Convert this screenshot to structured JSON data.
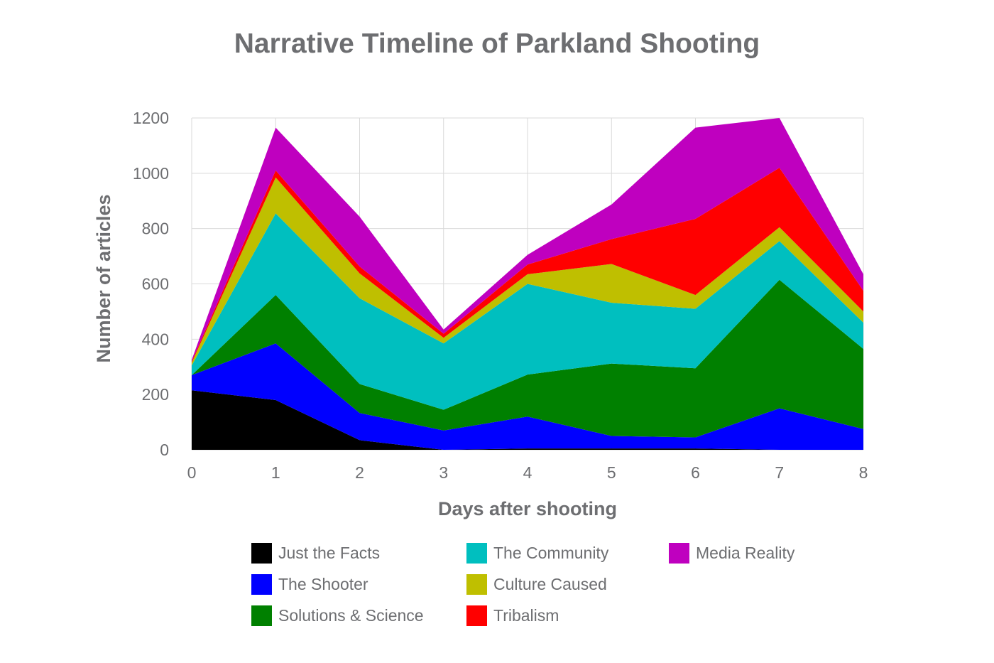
{
  "chart_data": {
    "type": "area",
    "stacked": true,
    "title": "Narrative Timeline of Parkland Shooting",
    "xlabel": "Days after shooting",
    "ylabel": "Number of articles",
    "x": [
      0,
      1,
      2,
      3,
      4,
      5,
      6,
      7,
      8
    ],
    "x_ticks": [
      "0",
      "1",
      "2",
      "3",
      "4",
      "5",
      "6",
      "7",
      "8"
    ],
    "ylim": [
      0,
      1200
    ],
    "y_ticks": [
      "0",
      "200",
      "400",
      "600",
      "800",
      "1000",
      "1200"
    ],
    "grid": true,
    "legend_position": "bottom",
    "series": [
      {
        "name": "Just the Facts",
        "color": "#000000",
        "values": [
          215,
          180,
          35,
          0,
          5,
          5,
          5,
          0,
          0
        ]
      },
      {
        "name": "The Shooter",
        "color": "#0000ff",
        "values": [
          55,
          205,
          98,
          70,
          115,
          45,
          40,
          150,
          75
        ]
      },
      {
        "name": "Solutions & Science",
        "color": "#008000",
        "values": [
          0,
          175,
          105,
          75,
          152,
          262,
          250,
          465,
          290
        ]
      },
      {
        "name": "The Community",
        "color": "#00bfbf",
        "values": [
          35,
          295,
          310,
          240,
          328,
          220,
          215,
          140,
          95
        ]
      },
      {
        "name": "Culture Caused",
        "color": "#bfbf00",
        "values": [
          10,
          130,
          90,
          20,
          35,
          140,
          50,
          50,
          40
        ]
      },
      {
        "name": "Tribalism",
        "color": "#ff0000",
        "values": [
          5,
          25,
          25,
          15,
          35,
          90,
          275,
          215,
          75
        ]
      },
      {
        "name": "Media Reality",
        "color": "#bf00bf",
        "values": [
          5,
          155,
          180,
          15,
          35,
          125,
          330,
          180,
          60
        ]
      }
    ]
  },
  "legend": {
    "items": [
      "Just the Facts",
      "The Community",
      "Media Reality",
      "The Shooter",
      "Culture Caused",
      "Solutions & Science",
      "Tribalism"
    ]
  }
}
